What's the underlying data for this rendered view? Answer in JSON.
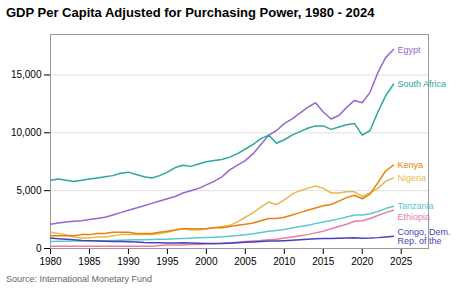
{
  "chart_data": {
    "type": "line",
    "title": "GDP Per Capita Adjusted for Purchasing Power, 1980 - 2024",
    "caption": "Source: International Monetary Fund",
    "x": [
      1980,
      1981,
      1982,
      1983,
      1984,
      1985,
      1986,
      1987,
      1988,
      1989,
      1990,
      1991,
      1992,
      1993,
      1994,
      1995,
      1996,
      1997,
      1998,
      1999,
      2000,
      2001,
      2002,
      2003,
      2004,
      2005,
      2006,
      2007,
      2008,
      2009,
      2010,
      2011,
      2012,
      2013,
      2014,
      2015,
      2016,
      2017,
      2018,
      2019,
      2020,
      2021,
      2022,
      2023,
      2024
    ],
    "series": [
      {
        "name": "Egypt",
        "color": "#9966cc",
        "values": [
          2100,
          2200,
          2300,
          2350,
          2400,
          2500,
          2600,
          2700,
          2900,
          3100,
          3300,
          3500,
          3700,
          3900,
          4100,
          4300,
          4500,
          4800,
          5000,
          5200,
          5500,
          5800,
          6200,
          6800,
          7200,
          7600,
          8200,
          9000,
          9800,
          10200,
          10800,
          11200,
          11700,
          12200,
          12600,
          11800,
          11200,
          11500,
          12200,
          12800,
          12600,
          13500,
          15200,
          16500,
          17200
        ]
      },
      {
        "name": "South Africa",
        "color": "#2ba89b",
        "values": [
          5900,
          6000,
          5900,
          5800,
          5900,
          6000,
          6100,
          6200,
          6300,
          6500,
          6600,
          6400,
          6200,
          6100,
          6300,
          6600,
          7000,
          7200,
          7100,
          7300,
          7500,
          7600,
          7700,
          7900,
          8200,
          8600,
          9000,
          9500,
          9800,
          9100,
          9400,
          9800,
          10100,
          10400,
          10600,
          10600,
          10300,
          10500,
          10700,
          10800,
          9800,
          10200,
          11800,
          13200,
          14200
        ]
      },
      {
        "name": "Nigeria",
        "color": "#e8b84b",
        "values": [
          1400,
          1300,
          1200,
          1000,
          900,
          900,
          1000,
          1000,
          1100,
          1200,
          1200,
          1200,
          1200,
          1200,
          1300,
          1400,
          1600,
          1700,
          1600,
          1600,
          1700,
          1800,
          1900,
          2000,
          2300,
          2700,
          3100,
          3600,
          4000,
          3800,
          4200,
          4700,
          5000,
          5200,
          5400,
          5200,
          4800,
          4800,
          4900,
          4900,
          4500,
          4800,
          5200,
          5800,
          6100
        ]
      },
      {
        "name": "Kenya",
        "color": "#e8820c",
        "values": [
          1100,
          1100,
          1100,
          1100,
          1200,
          1200,
          1300,
          1300,
          1400,
          1400,
          1400,
          1300,
          1300,
          1300,
          1400,
          1500,
          1600,
          1700,
          1700,
          1700,
          1700,
          1800,
          1800,
          1900,
          2000,
          2100,
          2200,
          2400,
          2600,
          2600,
          2700,
          2900,
          3100,
          3300,
          3500,
          3700,
          3800,
          4100,
          4400,
          4600,
          4300,
          4700,
          5700,
          6700,
          7200
        ]
      },
      {
        "name": "Ethiopia",
        "color": "#e87da8",
        "values": [
          200,
          200,
          200,
          200,
          200,
          200,
          200,
          200,
          200,
          200,
          200,
          200,
          200,
          200,
          250,
          300,
          300,
          300,
          350,
          350,
          400,
          400,
          450,
          500,
          550,
          600,
          650,
          700,
          750,
          800,
          900,
          1000,
          1100,
          1200,
          1350,
          1500,
          1700,
          1900,
          2100,
          2350,
          2400,
          2600,
          2850,
          3100,
          3300
        ]
      },
      {
        "name": "Tanzania",
        "color": "#5bc8d4",
        "values": [
          600,
          620,
          630,
          640,
          650,
          660,
          670,
          680,
          700,
          720,
          740,
          750,
          760,
          770,
          790,
          810,
          840,
          870,
          890,
          920,
          950,
          980,
          1010,
          1060,
          1120,
          1190,
          1270,
          1380,
          1490,
          1550,
          1650,
          1780,
          1900,
          2010,
          2150,
          2300,
          2420,
          2560,
          2720,
          2890,
          2900,
          3000,
          3200,
          3450,
          3650
        ]
      },
      {
        "name": "Congo, Dem.\nRep. of the",
        "color": "#4444bb",
        "values": [
          900,
          850,
          800,
          750,
          700,
          680,
          650,
          620,
          600,
          600,
          580,
          560,
          520,
          500,
          490,
          480,
          480,
          490,
          480,
          460,
          440,
          430,
          440,
          460,
          490,
          530,
          570,
          610,
          640,
          650,
          680,
          720,
          760,
          800,
          840,
          870,
          860,
          880,
          900,
          930,
          880,
          900,
          940,
          1000,
          1050
        ]
      }
    ],
    "xlim": [
      1980,
      2028.5
    ],
    "xticks": [
      1980,
      1985,
      1990,
      1995,
      2000,
      2005,
      2010,
      2015,
      2020,
      2025
    ],
    "ylim": [
      0,
      18500
    ],
    "yticks": [
      0,
      {
        "value": 5000,
        "label": "5,000"
      },
      {
        "value": 10000,
        "label": "10,000"
      },
      {
        "value": 15000,
        "label": "15,000"
      }
    ],
    "grid": true
  }
}
